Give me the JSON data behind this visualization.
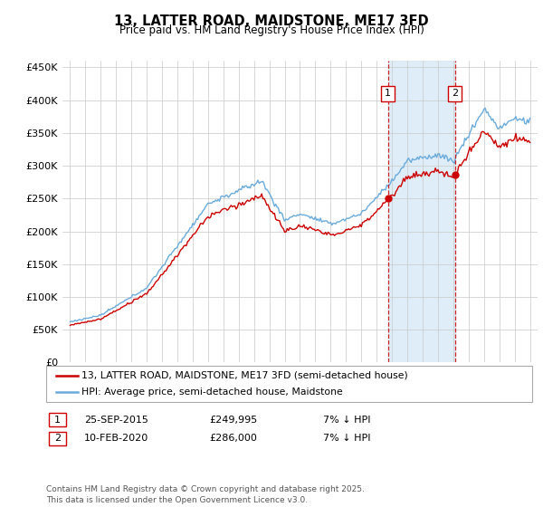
{
  "title": "13, LATTER ROAD, MAIDSTONE, ME17 3FD",
  "subtitle": "Price paid vs. HM Land Registry's House Price Index (HPI)",
  "ylabel_ticks": [
    "£0",
    "£50K",
    "£100K",
    "£150K",
    "£200K",
    "£250K",
    "£300K",
    "£350K",
    "£400K",
    "£450K"
  ],
  "ytick_values": [
    0,
    50000,
    100000,
    150000,
    200000,
    250000,
    300000,
    350000,
    400000,
    450000
  ],
  "ylim": [
    0,
    460000
  ],
  "xlim_start": 1994.5,
  "xlim_end": 2025.5,
  "hpi_color": "#6aabdc",
  "price_color": "#cc0000",
  "vline_color": "#cc0000",
  "vline_style": "--",
  "shade_color": "#daeaf7",
  "purchase1_x": 2015.73,
  "purchase2_x": 2020.12,
  "purchase1_price": 249995,
  "purchase2_price": 286000,
  "legend_label_red": "13, LATTER ROAD, MAIDSTONE, ME17 3FD (semi-detached house)",
  "legend_label_blue": "HPI: Average price, semi-detached house, Maidstone",
  "table_row1": [
    "1",
    "25-SEP-2015",
    "£249,995",
    "7% ↓ HPI"
  ],
  "table_row2": [
    "2",
    "10-FEB-2020",
    "£286,000",
    "7% ↓ HPI"
  ],
  "footer": "Contains HM Land Registry data © Crown copyright and database right 2025.\nThis data is licensed under the Open Government Licence v3.0.",
  "background_color": "#ffffff",
  "grid_color": "#c8c8c8"
}
